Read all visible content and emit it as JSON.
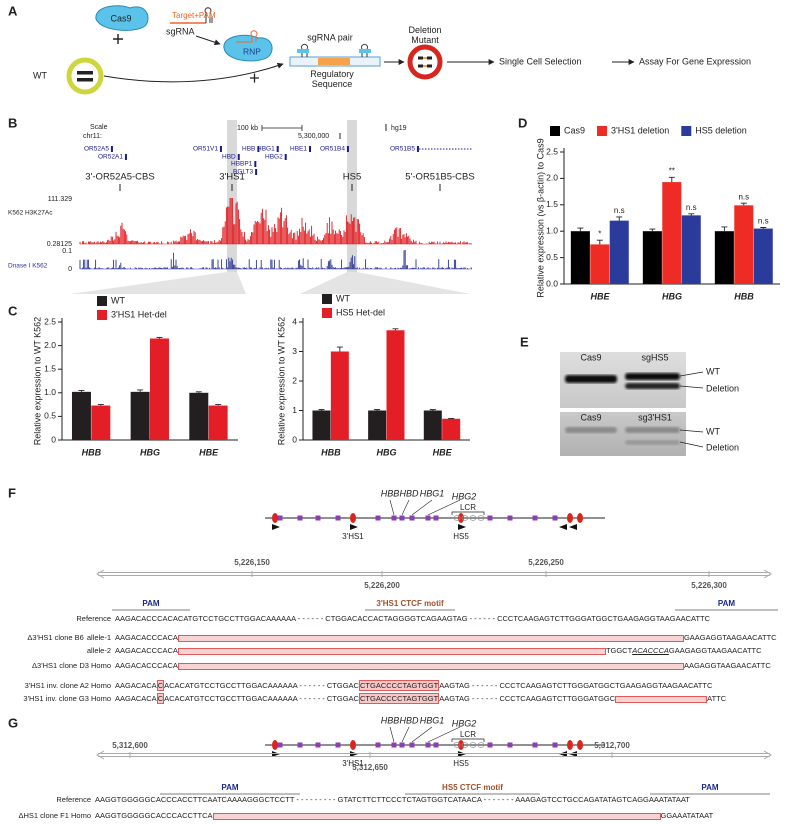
{
  "panel_labels": [
    "A",
    "B",
    "C",
    "D",
    "E",
    "F",
    "G"
  ],
  "panel_a": {
    "cas9": "Cas9",
    "target_pam": "Target+PAM",
    "sgrna": "sgRNA",
    "rnp": "RNP",
    "wt": "WT",
    "sgrna_pair": "sgRNA pair",
    "regulatory_sequence": "Regulatory Sequence",
    "deletion_mutant": "Deletion Mutant",
    "steps": [
      "Single Cell Selection",
      "Assay For Gene Expression"
    ]
  },
  "panel_b": {
    "scale": "Scale",
    "chrom": "chr11:",
    "scale_bar": "100 kb",
    "position": "5,300,000",
    "assembly": "hg19",
    "genes": [
      "OR52A5",
      "OR52A1",
      "OR51V1",
      "HBB",
      "HBD",
      "HBBP1",
      "BGLT3",
      "HBG1",
      "HBG2",
      "HBE1",
      "OR51B4",
      "OR51B5"
    ],
    "regions": [
      "3'-OR52A5-CBS",
      "3'HS1",
      "HS5",
      "5'-OR51B5-CBS"
    ],
    "tracks": [
      {
        "name": "K562 H3K27Ac",
        "max": "111.329",
        "min": "0.28125"
      },
      {
        "name": "Dnase I K562",
        "max": "0.1",
        "min": "0"
      }
    ]
  },
  "chart_data": [
    {
      "type": "bar",
      "ylabel": "Relative expression to WT K562",
      "categories": [
        "HBB",
        "HBG",
        "HBE"
      ],
      "series": [
        {
          "name": "WT",
          "color": "#231f20",
          "values": [
            1.02,
            1.02,
            1.0
          ],
          "errors": [
            0.03,
            0.04,
            0.02
          ]
        },
        {
          "name": "3'HS1 Het-del",
          "color": "#e41e26",
          "values": [
            0.73,
            2.15,
            0.73
          ],
          "errors": [
            0.02,
            0.02,
            0.02
          ]
        }
      ],
      "ylim": [
        0,
        2.5
      ],
      "yticks": [
        0,
        0.5,
        {
          "value": 1,
          "label": "1.0"
        },
        1.5,
        {
          "value": 2,
          "label": "2.0"
        },
        2.5
      ]
    },
    {
      "type": "bar",
      "ylabel": "Relative expression to WT K562",
      "categories": [
        "HBB",
        "HBG",
        "HBE"
      ],
      "series": [
        {
          "name": "WT",
          "color": "#231f20",
          "values": [
            1.0,
            1.0,
            1.0
          ],
          "errors": [
            0.03,
            0.03,
            0.03
          ]
        },
        {
          "name": "HS5 Het-del",
          "color": "#e41e26",
          "values": [
            3.0,
            3.72,
            0.72
          ],
          "errors": [
            0.15,
            0.05,
            0.01
          ]
        }
      ],
      "ylim": [
        0,
        4
      ],
      "yticks": [
        0,
        1,
        2,
        3,
        4
      ]
    },
    {
      "type": "bar",
      "ylabel": "Relative expression (vs β-actin) to Cas9",
      "categories": [
        "HBE",
        "HBG",
        "HBB"
      ],
      "series": [
        {
          "name": "Cas9",
          "color": "#000000",
          "values": [
            1.0,
            1.0,
            1.0
          ],
          "errors": [
            0.06,
            0.04,
            0.08
          ]
        },
        {
          "name": "3'HS1 deletion",
          "color": "#ee2b24",
          "values": [
            0.75,
            1.93,
            1.49
          ],
          "errors": [
            0.08,
            0.09,
            0.04
          ],
          "significance": [
            "*",
            "**",
            "n.s"
          ]
        },
        {
          "name": "HS5 deletion",
          "color": "#2b3b9b",
          "values": [
            1.2,
            1.3,
            1.05
          ],
          "errors": [
            0.07,
            0.03,
            0.02
          ],
          "significance": [
            "n.s",
            "n.s",
            "n.s"
          ]
        }
      ],
      "ylim": [
        0,
        2.5
      ],
      "yticks": [
        {
          "value": 0,
          "label": "0.0"
        },
        0.5,
        {
          "value": 1,
          "label": "1.0"
        },
        1.5,
        {
          "value": 2,
          "label": "2.0"
        },
        2.5
      ]
    }
  ],
  "panel_e": {
    "gels": [
      {
        "lanes": [
          "Cas9",
          "sgHS5"
        ],
        "bands": [
          "WT",
          "Deletion"
        ]
      },
      {
        "lanes": [
          "Cas9",
          "sg3'HS1"
        ],
        "bands": [
          "WT",
          "Deletion"
        ]
      }
    ]
  },
  "panel_f": {
    "genes": [
      "HBB",
      "HBD",
      "HBG1",
      "HBG2"
    ],
    "lcr": "LCR",
    "sites": [
      "3'HS1",
      "HS5"
    ],
    "coordinates": [
      "5,226,150",
      "5,226,200",
      "5,226,250",
      "5,226,300"
    ],
    "motifs": [
      "PAM",
      "3'HS1 CTCF motif",
      "PAM"
    ],
    "rows": [
      {
        "label": "Reference",
        "segments": [
          {
            "text": "AAGACACCCACACATGTCCTGCCTTGGACAAAAAA - - - - - - CTGGACACCACTAGGGGTCAGAAGTAG - - - - - - CCCTCAAGAGTCTTGGGATGGCTGAAGAGGTAAGAACATTC"
          }
        ]
      },
      {
        "label": "Δ3'HS1 clone B6",
        "allele": "allele-1",
        "segments": [
          {
            "text": "AAGACACCCACA"
          },
          {
            "style": "deleted"
          },
          {
            "text": "GAAGAGGTAAGAACATTC"
          }
        ]
      },
      {
        "allele": "allele-2",
        "segments": [
          {
            "text": "AAGACACCCACA"
          },
          {
            "style": "deleted"
          },
          {
            "text": "TGGCT"
          },
          {
            "text": "ACACCCA",
            "style": "inserted"
          },
          {
            "text": "GAAGAGGTAAGAACATTC"
          }
        ]
      },
      {
        "label": "Δ3'HS1 clone D3 Homo",
        "segments": [
          {
            "text": "AAGACACCCACA"
          },
          {
            "style": "deleted"
          },
          {
            "text": "AAGAGGTAAGAACATTC"
          }
        ]
      },
      {
        "label": "3'HS1 inv. clone A2 Homo",
        "segments": [
          {
            "text": "AAGACACA"
          },
          {
            "text": "C",
            "style": "edited"
          },
          {
            "text": "ACACATGTCCTGCCTTGGACAAAAAA - - - - - - CTGGAC"
          },
          {
            "text": "CTGACCCCTAGTGGT",
            "style": "edited"
          },
          {
            "text": "AAGTAG - - - - - - CCCTCAAGAGTCTTGGGATGGCTGAAGAGGTAAGAACATTC"
          }
        ]
      },
      {
        "label": "3'HS1 inv. clone G3 Homo",
        "segments": [
          {
            "text": "AAGACACA"
          },
          {
            "text": "C",
            "style": "edited"
          },
          {
            "text": "ACACATGTCCTGCCTTGGACAAAAAA - - - - - - CTGGAC"
          },
          {
            "text": "CTGACCCCTAGTGGT",
            "style": "edited"
          },
          {
            "text": "AAGTAG - - - - - - CCCTCAAGAGTCTTGGGATGGC"
          },
          {
            "style": "deleted"
          },
          {
            "text": "ATTC"
          }
        ]
      }
    ]
  },
  "panel_g": {
    "genes": [
      "HBB",
      "HBD",
      "HBG1",
      "HBG2"
    ],
    "lcr": "LCR",
    "sites": [
      "3'HS1",
      "HS5"
    ],
    "coordinates": [
      "5,312,600",
      "5,312,650",
      "5,312,700"
    ],
    "motifs": [
      "PAM",
      "HS5 CTCF motif",
      "PAM"
    ],
    "rows": [
      {
        "label": "Reference",
        "segments": [
          {
            "text": "AAGGTGGGGGCACCCACCTTCAATCAAAAGGGCTCCTT - - - - - - - - - GTATCTTCTTCCCTCTAGTGGTCATAACA - - - - - - - AAAGAGTCCTGCCAGATATAGTCAGGAAATATAAT"
          }
        ]
      },
      {
        "label": "ΔHS1 clone F1 Homo",
        "segments": [
          {
            "text": "AAGGTGGGGGCACCCACCTTCA"
          },
          {
            "style": "deleted"
          },
          {
            "text": "GGAAATATAAT"
          }
        ]
      }
    ]
  }
}
